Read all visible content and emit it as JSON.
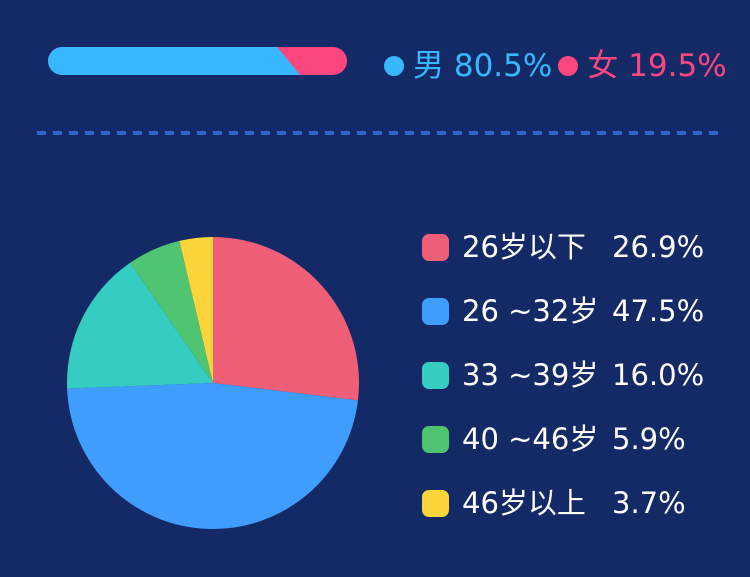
{
  "background_color": "#142a66",
  "separator": {
    "style": "dashed",
    "color": "#2f63cd"
  },
  "chart_data": [
    {
      "type": "bar",
      "variant": "horizontal-stacked-pill",
      "categories": [
        "男",
        "女"
      ],
      "values": [
        80.5,
        19.5
      ],
      "labels": [
        "80.5%",
        "19.5%"
      ],
      "colors": [
        "#36b7fe",
        "#fc477e"
      ],
      "unit": "%",
      "xlim": [
        0,
        100
      ],
      "legend_position": "right",
      "legend_entries": [
        "男 80.5%",
        "女 19.5%"
      ]
    },
    {
      "type": "pie",
      "categories": [
        "26岁以下",
        "26 ~32岁",
        "33 ~39岁",
        "40 ~46岁",
        "46岁以上"
      ],
      "values": [
        26.9,
        47.5,
        16.0,
        5.9,
        3.7
      ],
      "labels": [
        "26.9%",
        "47.5%",
        "16.0%",
        "5.9%",
        "3.7%"
      ],
      "colors": [
        "#ef5f78",
        "#3f9dfe",
        "#35cdc2",
        "#4fc572",
        "#fcd53b"
      ],
      "start_angle_deg": 0,
      "direction": "clockwise",
      "legend_position": "right",
      "legend_text_color": "#ffffff"
    }
  ]
}
